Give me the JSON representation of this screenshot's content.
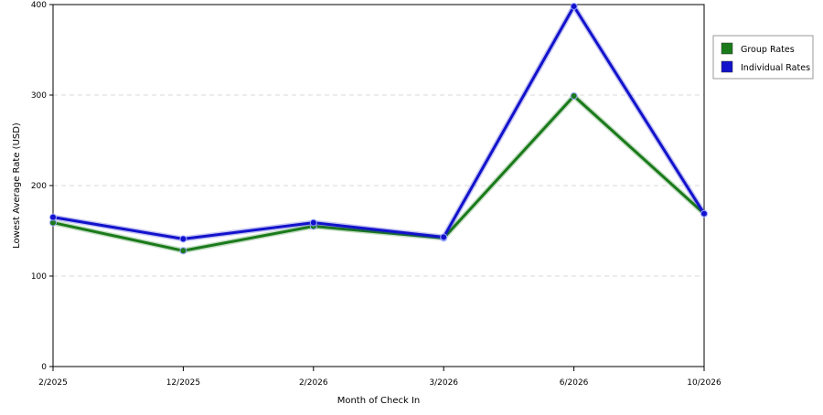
{
  "chart_data": {
    "type": "line",
    "title": "",
    "xlabel": "Month of Check In",
    "ylabel": "Lowest Average Rate (USD)",
    "categories": [
      "2/2025",
      "12/2025",
      "2/2026",
      "3/2026",
      "6/2026",
      "10/2026"
    ],
    "ylim": [
      0,
      400
    ],
    "yticks": [
      0,
      100,
      200,
      300,
      400
    ],
    "grid": "horizontal dashed",
    "legend_position": "right",
    "series": [
      {
        "name": "Group Rates",
        "color": "#1a7a1a",
        "values": [
          159,
          128,
          155,
          142,
          299,
          169
        ]
      },
      {
        "name": "Individual Rates",
        "color": "#1212cc",
        "values": [
          165,
          141,
          159,
          143,
          398,
          169
        ]
      }
    ]
  }
}
